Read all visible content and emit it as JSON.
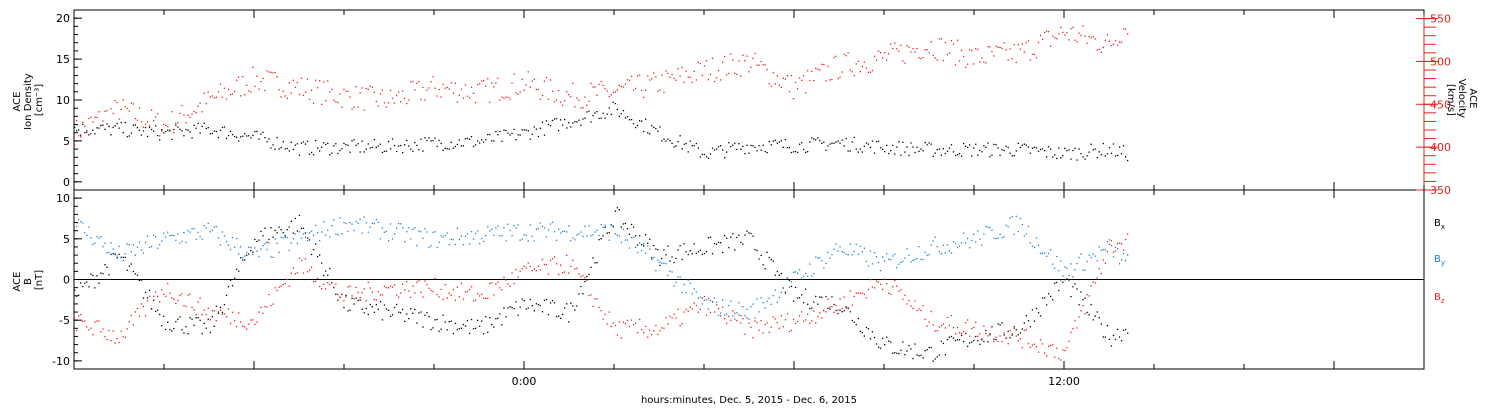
{
  "colors": {
    "black": "#000000",
    "red": "#e8201c",
    "blue": "#1a82d8"
  },
  "chart_data": [
    {
      "type": "scatter",
      "panel": "top",
      "title": "",
      "ylabel_left": [
        "ACE",
        "Ion Density",
        "[cm⁻³]"
      ],
      "ylabel_right": [
        "ACE",
        "Velocity",
        "[km/s]"
      ],
      "ylim_left": [
        -1,
        21
      ],
      "ylim_right": [
        350,
        560
      ],
      "yticks_left": [
        "0",
        "5",
        "10",
        "15",
        "20"
      ],
      "yticks_right": [
        "350",
        "400",
        "450",
        "500",
        "550"
      ],
      "xlim_hours": [
        -10,
        20
      ],
      "data_end_hour": 13.4,
      "series": [
        {
          "key": "density",
          "axis": "left",
          "color": "black",
          "x": [
            -10,
            -9,
            -8,
            -7,
            -6,
            -5,
            -4,
            -3,
            -2,
            -1,
            0,
            1,
            2,
            3,
            4,
            5,
            6,
            7,
            8,
            9,
            10,
            11,
            12,
            13,
            13.4
          ],
          "y": [
            6.5,
            6.5,
            6,
            6.5,
            5.5,
            4.2,
            4.3,
            4.4,
            4.8,
            5,
            6,
            7.5,
            9,
            6,
            3.5,
            4.5,
            4.5,
            4.8,
            4.3,
            4,
            4,
            4,
            3.5,
            4,
            3.5
          ]
        },
        {
          "key": "velocity",
          "axis": "right",
          "color": "red",
          "x": [
            -10,
            -9,
            -8,
            -7,
            -6,
            -5,
            -4,
            -3,
            -2,
            -1,
            0,
            1,
            2,
            3,
            4,
            5,
            6,
            7,
            8,
            9,
            10,
            11,
            12,
            13,
            13.4
          ],
          "y": [
            418,
            445,
            425,
            455,
            480,
            470,
            460,
            455,
            470,
            465,
            475,
            460,
            465,
            475,
            490,
            500,
            470,
            495,
            505,
            520,
            505,
            510,
            535,
            520,
            545
          ]
        }
      ]
    },
    {
      "type": "scatter",
      "panel": "bottom",
      "title": "",
      "ylabel": [
        "ACE",
        "B",
        "[nT]"
      ],
      "ylim": [
        -11,
        11
      ],
      "yticks": [
        "-10",
        "-5",
        "0",
        "5",
        "10"
      ],
      "xlim_hours": [
        -10,
        20
      ],
      "data_end_hour": 13.4,
      "series": [
        {
          "name": "Bx",
          "color": "black",
          "x": [
            -10,
            -9,
            -8,
            -7,
            -6,
            -5,
            -4,
            -3,
            -2,
            -1,
            0,
            1,
            2,
            3,
            4,
            5,
            6,
            7,
            8,
            9,
            10,
            11,
            12,
            13,
            13.4
          ],
          "y": [
            -2,
            3,
            -5,
            -6,
            5,
            7,
            -3,
            -4,
            -5,
            -6,
            -3,
            -4,
            8,
            3,
            4,
            5,
            -2,
            -3,
            -8,
            -9,
            -7,
            -6,
            0,
            -7,
            -6
          ]
        },
        {
          "name": "By",
          "color": "blue",
          "x": [
            -10,
            -9,
            -8,
            -7,
            -6,
            -5,
            -4,
            -3,
            -2,
            -1,
            0,
            1,
            2,
            3,
            4,
            5,
            6,
            7,
            8,
            9,
            10,
            11,
            12,
            13,
            13.4
          ],
          "y": [
            7,
            3,
            5,
            6,
            3,
            5,
            7,
            6,
            5,
            5.5,
            6,
            6,
            6,
            2,
            -3,
            -4,
            0,
            4,
            2,
            4,
            5,
            7,
            1,
            4,
            2
          ]
        },
        {
          "name": "Bz",
          "color": "red",
          "x": [
            -10,
            -9,
            -8,
            -7,
            -6,
            -5,
            -4,
            -3,
            -2,
            -1,
            0,
            1,
            2,
            3,
            4,
            5,
            6,
            7,
            8,
            9,
            10,
            11,
            12,
            13,
            13.4
          ],
          "y": [
            -5,
            -7,
            -1,
            -4,
            -5,
            2,
            -2,
            -1,
            -1,
            -2,
            1,
            2,
            -6,
            -6,
            -3,
            -6,
            -5,
            -3,
            0,
            -5,
            -6,
            -7,
            -9,
            4,
            5
          ]
        }
      ],
      "legend": [
        {
          "label": "B",
          "sub": "x",
          "color": "black"
        },
        {
          "label": "B",
          "sub": "y",
          "color": "blue"
        },
        {
          "label": "B",
          "sub": "z",
          "color": "red"
        }
      ],
      "legend_position": "right"
    }
  ],
  "x_axis": {
    "ticks": [
      {
        "hour": 0,
        "label": "0:00"
      },
      {
        "hour": 12,
        "label": "12:00"
      }
    ],
    "title": "hours:minutes, Dec.  5, 2015 - Dec.  6, 2015"
  }
}
